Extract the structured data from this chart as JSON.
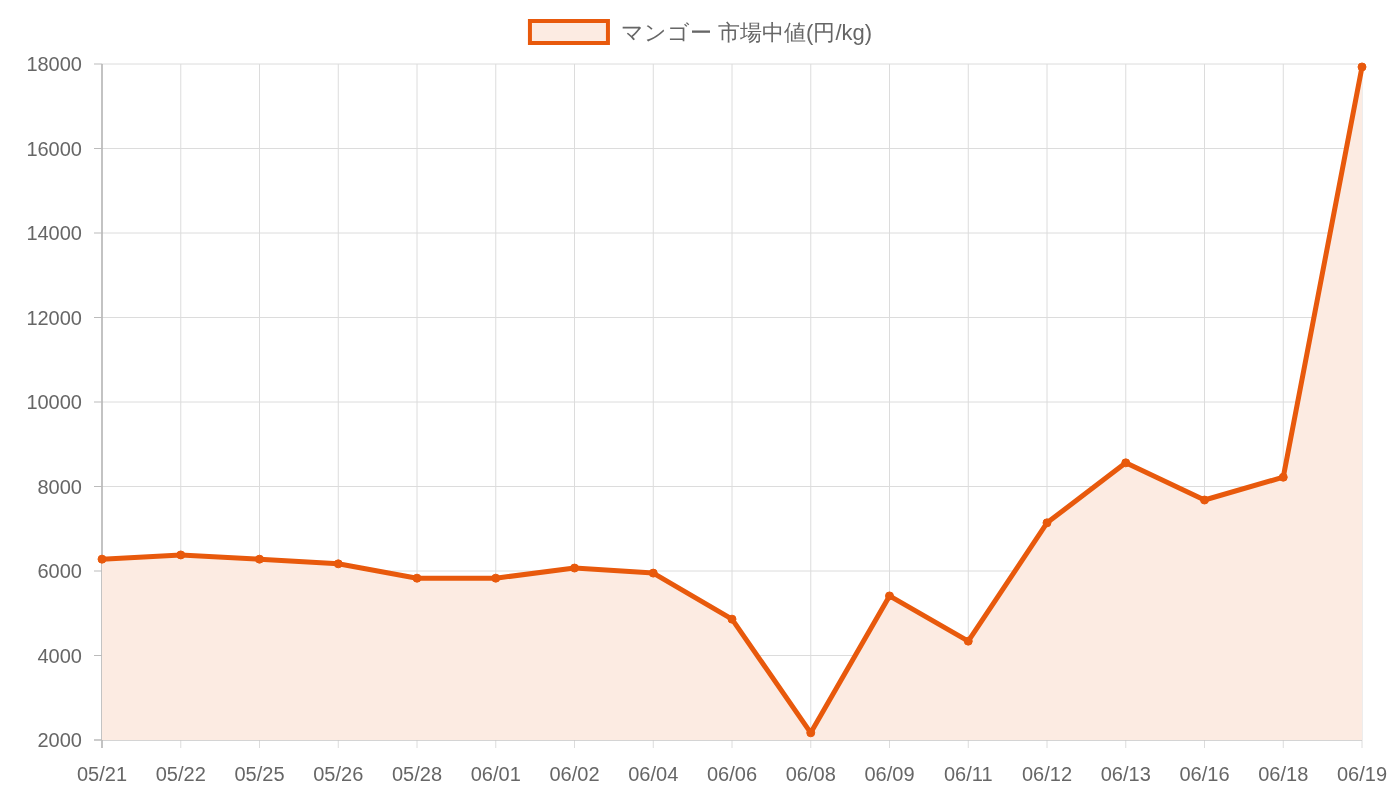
{
  "chart_data": {
    "type": "area",
    "categories": [
      "05/21",
      "05/22",
      "05/25",
      "05/26",
      "05/28",
      "06/01",
      "06/02",
      "06/04",
      "06/06",
      "06/08",
      "06/09",
      "06/11",
      "06/12",
      "06/13",
      "06/16",
      "06/18",
      "06/19"
    ],
    "series": [
      {
        "name": "マンゴー 市場中値(円/kg)",
        "color": "#e8590c",
        "values": [
          6280,
          6380,
          6280,
          6170,
          5830,
          5830,
          6070,
          5950,
          4860,
          2170,
          5410,
          4340,
          7140,
          8560,
          7680,
          8220,
          17930
        ]
      }
    ],
    "ylim": [
      2000,
      18000
    ],
    "yticks": [
      2000,
      4000,
      6000,
      8000,
      10000,
      12000,
      14000,
      16000,
      18000
    ],
    "grid": true,
    "legend": "top",
    "marker": "circle"
  }
}
